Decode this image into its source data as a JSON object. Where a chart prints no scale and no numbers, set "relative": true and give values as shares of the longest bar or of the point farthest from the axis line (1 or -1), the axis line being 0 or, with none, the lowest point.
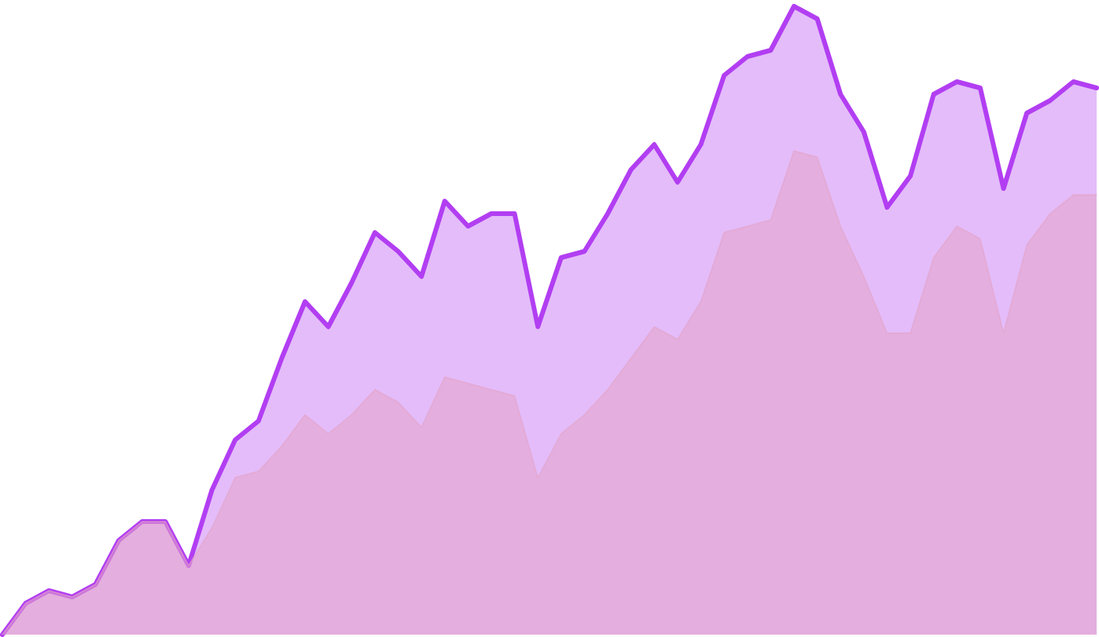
{
  "chart_data": {
    "type": "area",
    "relative": true,
    "stacked": false,
    "categories": [
      null,
      null,
      null,
      null,
      null,
      null,
      null,
      null,
      null,
      null,
      null,
      null,
      null,
      null,
      null,
      null,
      null,
      null,
      null,
      null,
      null,
      null,
      null,
      null,
      null,
      null,
      null,
      null,
      null,
      null,
      null,
      null,
      null,
      null,
      null,
      null,
      null,
      null,
      null,
      null,
      null,
      null,
      null,
      null,
      null,
      null,
      null,
      null
    ],
    "series": [
      {
        "color": "#b23ef2",
        "values": [
          0,
          0.05,
          0.07,
          0.06,
          0.08,
          0.15,
          0.18,
          0.18,
          0.11,
          0.23,
          0.31,
          0.34,
          0.44,
          0.53,
          0.49,
          0.56,
          0.64,
          0.61,
          0.57,
          0.69,
          0.65,
          0.67,
          0.67,
          0.49,
          0.6,
          0.61,
          0.67,
          0.74,
          0.78,
          0.72,
          0.78,
          0.89,
          0.92,
          0.93,
          1,
          0.98,
          0.86,
          0.8,
          0.68,
          0.73,
          0.86,
          0.88,
          0.87,
          0.71,
          0.83,
          0.85,
          0.88,
          0.87
        ]
      },
      {
        "color": "#e3a3c6",
        "values": [
          0,
          0.05,
          0.07,
          0.06,
          0.08,
          0.15,
          0.18,
          0.18,
          0.11,
          0.17,
          0.25,
          0.26,
          0.3,
          0.35,
          0.32,
          0.35,
          0.39,
          0.37,
          0.33,
          0.41,
          0.4,
          0.39,
          0.38,
          0.25,
          0.32,
          0.35,
          0.39,
          0.44,
          0.49,
          0.47,
          0.53,
          0.64,
          0.65,
          0.66,
          0.77,
          0.76,
          0.65,
          0.57,
          0.48,
          0.48,
          0.6,
          0.65,
          0.63,
          0.48,
          0.62,
          0.67,
          0.7,
          0.7
        ]
      }
    ]
  }
}
